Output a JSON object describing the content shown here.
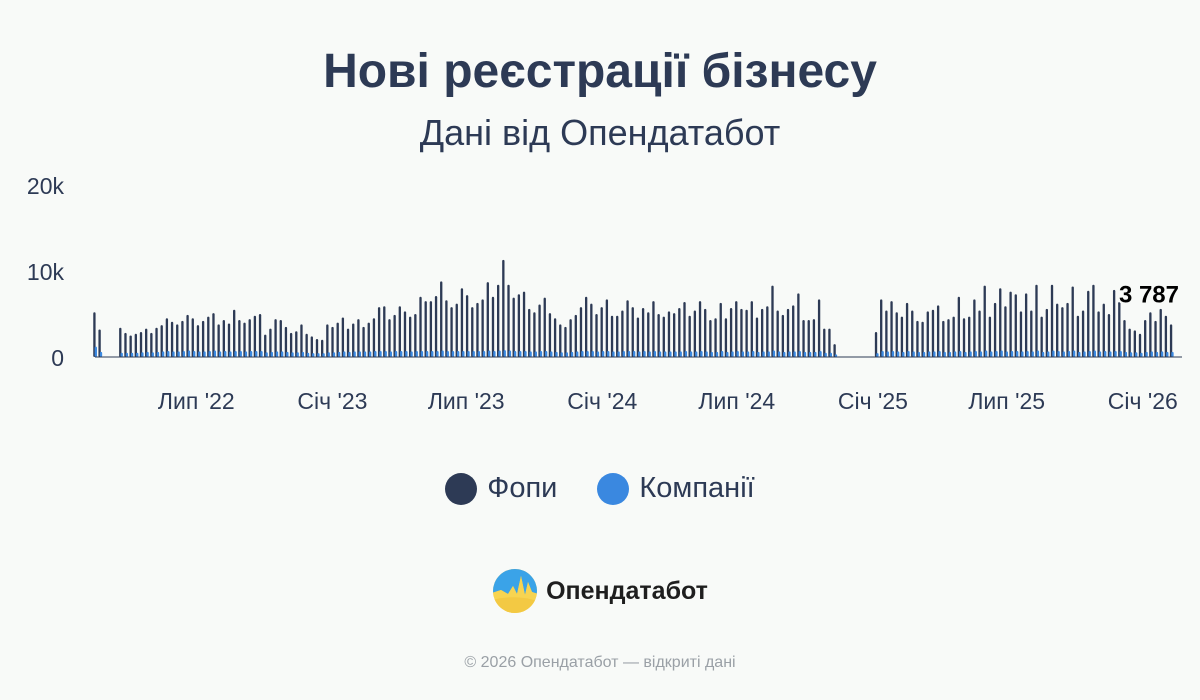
{
  "title": "Нові реєстрації бізнесу",
  "subtitle": "Дані від Опендатабот",
  "colors": {
    "fop": "#2d3a55",
    "companies": "#3a88e0",
    "background": "#f8faf8"
  },
  "legend": {
    "fop": "Фопи",
    "companies": "Компанії"
  },
  "logo": {
    "name": "Опендатабот",
    "icon": "opendatabot-logo-icon"
  },
  "footer": "© 2026 Опендатабот — відкриті дані",
  "chart_data": {
    "type": "bar",
    "subtype": "weekly-grouped",
    "ylim": [
      0,
      20000
    ],
    "y_ticks": [
      {
        "value": 0,
        "label": "0"
      },
      {
        "value": 10000,
        "label": "10k"
      },
      {
        "value": 20000,
        "label": "20k"
      }
    ],
    "x_ticks": [
      {
        "date": "2022-07-01",
        "label": "Лип '22"
      },
      {
        "date": "2023-01-01",
        "label": "Січ '23"
      },
      {
        "date": "2023-07-01",
        "label": "Лип '23"
      },
      {
        "date": "2024-01-01",
        "label": "Січ '24"
      },
      {
        "date": "2024-07-01",
        "label": "Лип '24"
      },
      {
        "date": "2025-01-01",
        "label": "Січ '25"
      },
      {
        "date": "2025-07-01",
        "label": "Лип '25"
      },
      {
        "date": "2026-01-01",
        "label": "Січ '26"
      }
    ],
    "x_range": [
      "2022-02-14",
      "2026-02-23"
    ],
    "annotation": {
      "label": "3 787",
      "series": "Фопи"
    },
    "series": [
      {
        "name": "Фопи",
        "segments": [
          {
            "start": "2022-02-14",
            "values": [
              5200,
              3200
            ]
          },
          {
            "start": "2022-03-21",
            "values": [
              3400,
              2800,
              2500,
              2700,
              2900,
              3300,
              2800,
              3400,
              3700,
              4500,
              4100,
              3800,
              4200,
              4900,
              4500,
              3700,
              4200,
              4700,
              5100,
              3800,
              4300,
              3900,
              5500,
              4300,
              4000,
              4400,
              4800,
              5000,
              2600,
              3300,
              4400,
              4300,
              3500,
              2800,
              3000,
              3800,
              2700,
              2400,
              2100,
              2000,
              3800,
              3500,
              4000,
              4600,
              3300,
              3900,
              4400,
              3500,
              4000,
              4500,
              5800,
              5900,
              4400,
              4900,
              5900,
              5300,
              4700,
              5000,
              7000,
              6500,
              6500,
              7100,
              8800,
              6600,
              5800,
              6200,
              8000,
              7200,
              5800,
              6300,
              6700,
              8700,
              7000,
              8400,
              11300,
              8400,
              6900,
              7300,
              7600,
              5600,
              5200,
              6100,
              6900,
              5100,
              4500,
              3800,
              3500,
              4400,
              4900,
              5800,
              7000,
              6200,
              5000,
              5800,
              6700,
              4800,
              4800,
              5400,
              6600,
              5800,
              4600,
              5700,
              5200,
              6500,
              5000,
              4700,
              5300,
              5100,
              5700,
              6400,
              4800,
              5400,
              6500,
              5600,
              4300,
              4500,
              6300,
              4500,
              5700,
              6500,
              5600,
              5500,
              6500,
              4600,
              5600,
              5900,
              8300,
              5400,
              4900,
              5600,
              6000,
              7400,
              4300,
              4300,
              4400,
              6700,
              3300,
              3300,
              1500
            ]
          },
          {
            "start": "2025-01-06",
            "values": [
              2900,
              6700,
              5400,
              6500,
              5200,
              4700,
              6300,
              5400,
              4200,
              4100,
              5300,
              5500,
              6000,
              4200,
              4400,
              4700,
              7000,
              4500,
              4700,
              6700,
              5400,
              8300,
              4700,
              6300,
              8000,
              5900,
              7600,
              7300,
              5300,
              7400,
              5400,
              8400,
              4700,
              5600,
              8400,
              6200,
              5800,
              6300,
              8200,
              4800,
              5400,
              7700,
              8400,
              5300,
              6200,
              5000,
              7800,
              6400,
              4300,
              3300,
              3100,
              2700,
              4300,
              5200,
              4200,
              5600,
              4800,
              3787
            ]
          }
        ]
      },
      {
        "name": "Компанії",
        "segments": [
          {
            "start": "2022-02-14",
            "values": [
              1200,
              600
            ]
          },
          {
            "start": "2022-03-21",
            "values": [
              500,
              500,
              500,
              500,
              550,
              600,
              550,
              600,
              650,
              700,
              650,
              650,
              700,
              750,
              700,
              650,
              650,
              700,
              750,
              650,
              700,
              650,
              700,
              700,
              650,
              700,
              700,
              700,
              550,
              600,
              650,
              650,
              600,
              550,
              550,
              600,
              500,
              450,
              450,
              450,
              550,
              550,
              600,
              650,
              600,
              650,
              650,
              650,
              650,
              700,
              700,
              700,
              650,
              700,
              700,
              700,
              650,
              700,
              700,
              700,
              700,
              700,
              750,
              700,
              700,
              700,
              700,
              700,
              700,
              700,
              700,
              750,
              700,
              750,
              800,
              750,
              700,
              700,
              700,
              650,
              650,
              700,
              700,
              650,
              600,
              550,
              550,
              600,
              650,
              700,
              700,
              700,
              650,
              700,
              700,
              650,
              650,
              700,
              700,
              700,
              650,
              700,
              650,
              700,
              650,
              650,
              650,
              650,
              650,
              700,
              650,
              650,
              700,
              650,
              600,
              600,
              700,
              600,
              650,
              700,
              650,
              650,
              700,
              600,
              650,
              650,
              750,
              650,
              600,
              650,
              650,
              700,
              600,
              600,
              600,
              700,
              500,
              500,
              300
            ]
          },
          {
            "start": "2025-01-06",
            "values": [
              450,
              700,
              650,
              700,
              650,
              600,
              700,
              650,
              600,
              600,
              650,
              650,
              700,
              600,
              600,
              650,
              700,
              600,
              650,
              700,
              650,
              750,
              650,
              700,
              750,
              650,
              700,
              700,
              650,
              700,
              650,
              750,
              600,
              650,
              750,
              700,
              650,
              700,
              750,
              600,
              650,
              700,
              750,
              650,
              700,
              650,
              700,
              700,
              600,
              550,
              550,
              500,
              600,
              650,
              600,
              650,
              600,
              600
            ]
          }
        ]
      }
    ]
  }
}
